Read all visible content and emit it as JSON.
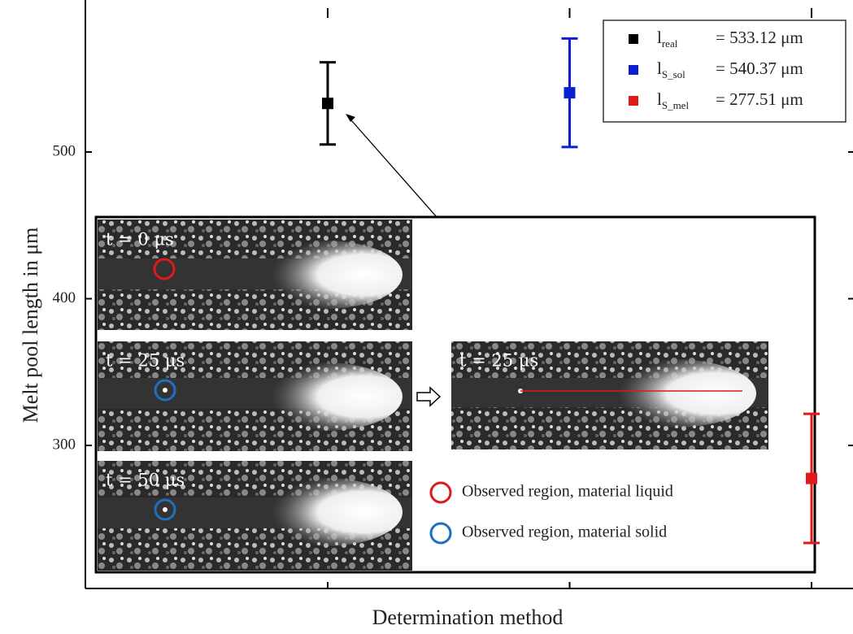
{
  "chart_data": {
    "type": "errorbar",
    "xlabel": "Determination method",
    "ylabel": "Melt pool length in μm",
    "categories": [
      null,
      null,
      null
    ],
    "series": [
      {
        "name": "l",
        "name_sub": "real",
        "color": "#000000",
        "values": [
          533.12,
          null,
          null
        ],
        "errors": [
          28,
          null,
          null
        ],
        "value_labels": [
          "= 533.12 μm",
          null,
          null
        ]
      },
      {
        "name": "l",
        "name_sub": "S_sol",
        "color": "#0b1fd0",
        "values": [
          null,
          540.37,
          null
        ],
        "errors": [
          null,
          37,
          null
        ],
        "value_labels": [
          null,
          "= 540.37 μm",
          null
        ]
      },
      {
        "name": "l",
        "name_sub": "S_mel",
        "color": "#e0191b",
        "values": [
          null,
          null,
          277.51
        ],
        "errors": [
          null,
          null,
          44
        ],
        "value_labels": [
          null,
          null,
          "= 277.51 μm"
        ]
      }
    ],
    "ylim": [
      202.5,
      603.6
    ],
    "yticks": [
      300,
      400,
      500
    ],
    "legend": "upper right"
  },
  "inset": {
    "panels": [
      "t = 0 μs",
      "t = 25 μs",
      "t = 50 μs",
      "t = 25 μs"
    ],
    "legend": [
      {
        "label": "Observed region, material liquid",
        "color": "#e0191b"
      },
      {
        "label": "Observed region, material solid",
        "color": "#1f6fc1"
      }
    ]
  }
}
